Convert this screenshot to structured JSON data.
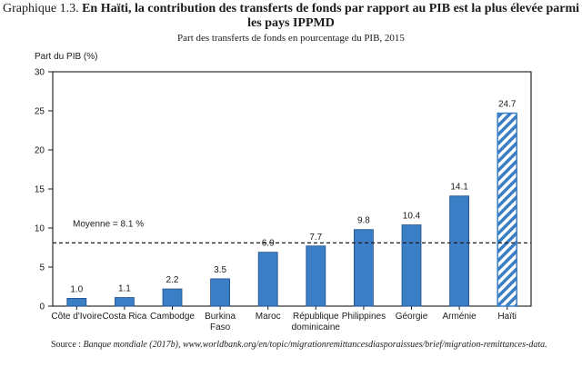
{
  "header": {
    "title_label": "Graphique 1.3.",
    "title_text": "En Haïti, la contribution des transferts de fonds par rapport au PIB est la plus élevée parmi les pays IPPMD",
    "subtitle": "Part des transferts de fonds en pourcentage du PIB, 2015"
  },
  "chart_data": {
    "type": "bar",
    "ylabel": "Part du PIB (%)",
    "ylim": [
      0,
      30
    ],
    "yticks": [
      0,
      5,
      10,
      15,
      20,
      25,
      30
    ],
    "categories": [
      "Côte d'Ivoire",
      "Costa Rica",
      "Cambodge",
      "Burkina Faso",
      "Maroc",
      "République dominicaine",
      "Philippines",
      "Géorgie",
      "Arménie",
      "Haïti"
    ],
    "category_lines": [
      [
        "Côte d'Ivoire"
      ],
      [
        "Costa Rica"
      ],
      [
        "Cambodge"
      ],
      [
        "Burkina",
        "Faso"
      ],
      [
        "Maroc"
      ],
      [
        "République",
        "dominicaine"
      ],
      [
        "Philippines"
      ],
      [
        "Géorgie"
      ],
      [
        "Arménie"
      ],
      [
        "Haïti"
      ]
    ],
    "values": [
      1.0,
      1.1,
      2.2,
      3.5,
      6.9,
      7.7,
      9.8,
      10.4,
      14.1,
      24.7
    ],
    "value_labels": [
      "1.0",
      "1.1",
      "2.2",
      "3.5",
      "6.9",
      "7.7",
      "9.8",
      "10.4",
      "14.1",
      "24.7"
    ],
    "highlight": "Haïti",
    "average": {
      "value": 8.1,
      "label": "Moyenne = 8.1 %"
    },
    "colors": {
      "bar": "#3a7fc6",
      "bar_border": "#1f4e8a",
      "highlight_stripe": "#3a7fc6",
      "average_line": "#1a1a1a",
      "axis": "#1a1a1a",
      "frame": "#000000"
    },
    "grid": false
  },
  "source": {
    "label": "Source :",
    "text": "Banque mondiale (2017b), www.worldbank.org/en/topic/migrationremittancesdiasporaissues/brief/migration-remittances-data."
  }
}
